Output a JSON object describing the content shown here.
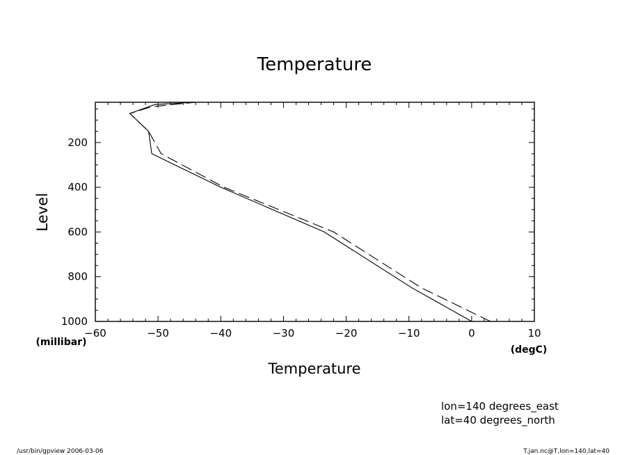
{
  "chart_data": {
    "type": "line",
    "title": "Temperature",
    "xlabel": "Temperature",
    "ylabel": "Level",
    "x_unit": "(degC)",
    "y_unit": "(millibar)",
    "xlim": [
      -60,
      10
    ],
    "ylim": [
      1000,
      20
    ],
    "y_inverted": true,
    "x_ticks": [
      "-60",
      "-50",
      "-40",
      "-30",
      "-20",
      "-10",
      "0",
      "10"
    ],
    "y_ticks": [
      "200",
      "400",
      "600",
      "800",
      "1000"
    ],
    "series": [
      {
        "style": "solid",
        "points": [
          {
            "x": 0.0,
            "y": 1000
          },
          {
            "x": -9.5,
            "y": 850
          },
          {
            "x": -23.5,
            "y": 600
          },
          {
            "x": -40.0,
            "y": 400
          },
          {
            "x": -51.0,
            "y": 250
          },
          {
            "x": -51.5,
            "y": 150
          },
          {
            "x": -54.5,
            "y": 70
          },
          {
            "x": -50.5,
            "y": 30
          },
          {
            "x": -44.0,
            "y": 20
          }
        ]
      },
      {
        "style": "dashed",
        "points": [
          {
            "x": 3.0,
            "y": 1000
          },
          {
            "x": -8.0,
            "y": 850
          },
          {
            "x": -22.0,
            "y": 600
          },
          {
            "x": -39.5,
            "y": 400
          },
          {
            "x": -49.5,
            "y": 250
          },
          {
            "x": -51.5,
            "y": 150
          },
          {
            "x": -54.5,
            "y": 70
          },
          {
            "x": -51.0,
            "y": 40
          },
          {
            "x": -44.0,
            "y": 20
          }
        ]
      }
    ],
    "grid": false,
    "legend": "none"
  },
  "info": {
    "line1": "lon=140 degrees_east",
    "line2": "lat=40 degrees_north"
  },
  "footer": {
    "left": "/usr/bin/gpview   2006-03-06",
    "right": "T.jan.nc@T,lon=140,lat=40"
  }
}
